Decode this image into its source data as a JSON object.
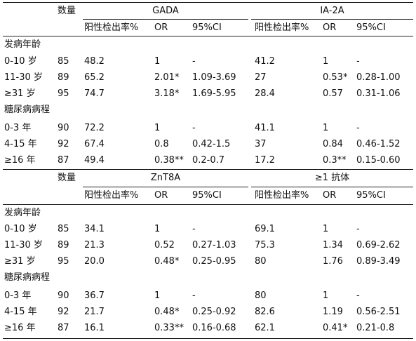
{
  "tables": [
    {
      "count_header": "数量",
      "groups": [
        {
          "title": "GADA",
          "cols": [
            "阳性检出率%",
            "OR",
            "95%CI"
          ]
        },
        {
          "title": "IA-2A",
          "cols": [
            "阳性检出率%",
            "OR",
            "95%CI"
          ]
        }
      ],
      "sections": [
        {
          "label": "发病年龄",
          "rows": [
            {
              "label": "0-10 岁",
              "n": "85",
              "g1": [
                "48.2",
                "1",
                "-"
              ],
              "g2": [
                "41.2",
                "1",
                "-"
              ]
            },
            {
              "label": "11-30 岁",
              "n": "89",
              "g1": [
                "65.2",
                "2.01*",
                "1.09-3.69"
              ],
              "g2": [
                "27",
                "0.53*",
                "0.28-1.00"
              ]
            },
            {
              "label": "≥31 岁",
              "n": "95",
              "g1": [
                "74.7",
                "3.18*",
                "1.69-5.95"
              ],
              "g2": [
                "28.4",
                "0.57",
                "0.31-1.06"
              ]
            }
          ]
        },
        {
          "label": "糖尿病病程",
          "rows": [
            {
              "label": "0-3 年",
              "n": "90",
              "g1": [
                "72.2",
                "1",
                "-"
              ],
              "g2": [
                "41.1",
                "1",
                "-"
              ]
            },
            {
              "label": "4-15 年",
              "n": "92",
              "g1": [
                "67.4",
                "0.8",
                "0.42-1.5"
              ],
              "g2": [
                "37",
                "0.84",
                "0.46-1.52"
              ]
            },
            {
              "label": "≥16 年",
              "n": "87",
              "g1": [
                "49.4",
                "0.38**",
                "0.2-0.7"
              ],
              "g2": [
                "17.2",
                "0.3**",
                "0.15-0.60"
              ]
            }
          ]
        }
      ]
    },
    {
      "count_header": "数量",
      "groups": [
        {
          "title": "ZnT8A",
          "cols": [
            "阳性检出率%",
            "OR",
            "95%CI"
          ]
        },
        {
          "title": "≥1 抗体",
          "cols": [
            "阳性检出率%",
            "OR",
            "95%CI"
          ]
        }
      ],
      "sections": [
        {
          "label": "发病年龄",
          "rows": [
            {
              "label": "0-10 岁",
              "n": "85",
              "g1": [
                "34.1",
                "1",
                "-"
              ],
              "g2": [
                "69.1",
                "1",
                "-"
              ]
            },
            {
              "label": "11-30 岁",
              "n": "89",
              "g1": [
                "21.3",
                "0.52",
                "0.27-1.03"
              ],
              "g2": [
                "75.3",
                "1.34",
                "0.69-2.62"
              ]
            },
            {
              "label": "≥31 岁",
              "n": "95",
              "g1": [
                "20.0",
                "0.48*",
                "0.25-0.95"
              ],
              "g2": [
                "80",
                "1.76",
                "0.89-3.49"
              ]
            }
          ]
        },
        {
          "label": "糖尿病病程",
          "rows": [
            {
              "label": "0-3 年",
              "n": "90",
              "g1": [
                "36.7",
                "1",
                "-"
              ],
              "g2": [
                "80",
                "1",
                "-"
              ]
            },
            {
              "label": "4-15 年",
              "n": "92",
              "g1": [
                "21.7",
                "0.48*",
                "0.25-0.92"
              ],
              "g2": [
                "82.6",
                "1.19",
                "0.56-2.51"
              ]
            },
            {
              "label": "≥16 年",
              "n": "87",
              "g1": [
                "16.1",
                "0.33**",
                "0.16-0.68"
              ],
              "g2": [
                "62.1",
                "0.41*",
                "0.21-0.8"
              ]
            }
          ]
        }
      ]
    }
  ]
}
